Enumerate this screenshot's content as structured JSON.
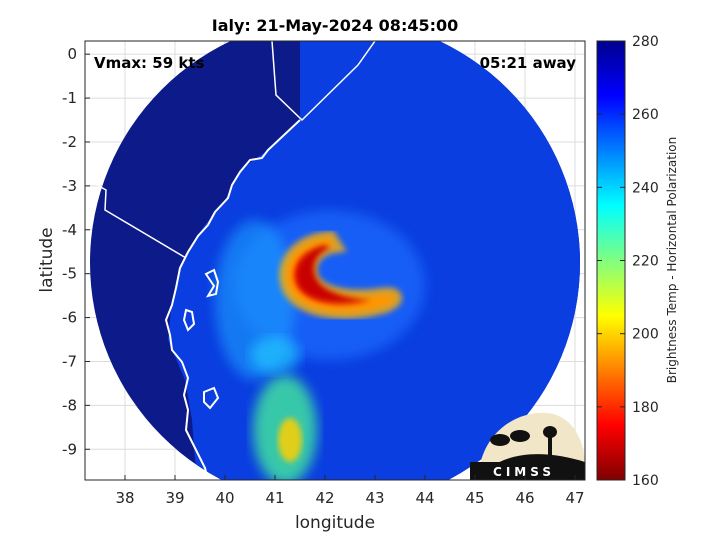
{
  "chart_data": {
    "type": "heatmap",
    "title": "Ialy: 21-May-2024 08:45:00",
    "xlabel": "longitude",
    "ylabel": "latitude",
    "xlim": [
      37.2,
      47.2
    ],
    "ylim": [
      -9.7,
      0.3
    ],
    "xticks": [
      38,
      39,
      40,
      41,
      42,
      43,
      44,
      45,
      46,
      47
    ],
    "yticks": [
      0,
      -1,
      -2,
      -3,
      -4,
      -5,
      -6,
      -7,
      -8,
      -9
    ],
    "grid": true,
    "annotations": {
      "vmax": "Vmax: 59 kts",
      "away": "05:21 away"
    },
    "swath": {
      "center_lon": 42.2,
      "center_lat": -4.75,
      "radius_deg": 4.9
    },
    "colorbar": {
      "label": "Brightness Temp - Horizontal Polarization",
      "range": [
        160,
        280
      ],
      "ticks": [
        160,
        180,
        200,
        220,
        240,
        260,
        280
      ],
      "colormap": [
        "#800000",
        "#ff0000",
        "#ff8000",
        "#ffff00",
        "#80ff80",
        "#00ffff",
        "#0080ff",
        "#0000ff",
        "#00008f"
      ]
    },
    "features": [
      {
        "name": "storm-eyewall",
        "lon": 42.0,
        "lat": -5.1,
        "tb": 180
      },
      {
        "name": "southern-rainband",
        "lon": 41.3,
        "lat": -8.6,
        "tb": 195
      }
    ],
    "logo": "CIMSS"
  },
  "colors": {
    "land": "#0d1a8a",
    "ocean": "#0a3ee0",
    "coast": "#ffffff",
    "grid": "#dcdcdc"
  }
}
